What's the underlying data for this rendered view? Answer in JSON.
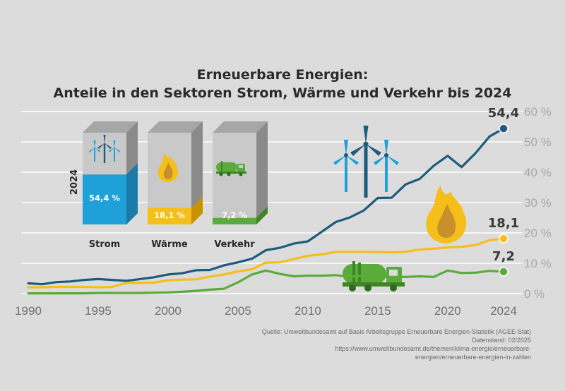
{
  "chart_data": {
    "type": "line",
    "title": [
      "Erneuerbare Energien:",
      "Anteile in den Sektoren Strom, Wärme und Verkehr bis 2024"
    ],
    "xlabel": "",
    "ylabel": "",
    "xlim": [
      1990,
      2024
    ],
    "ylim": [
      0,
      60
    ],
    "x_ticks": [
      "1990",
      "1995",
      "2000",
      "2005",
      "2010",
      "2015",
      "2020",
      "2024"
    ],
    "y_ticks": [
      "0 %",
      "10 %",
      "20 %",
      "30 %",
      "40 %",
      "50 %",
      "60 %"
    ],
    "grid": true,
    "x": [
      1990,
      1991,
      1992,
      1993,
      1994,
      1995,
      1996,
      1997,
      1998,
      1999,
      2000,
      2001,
      2002,
      2003,
      2004,
      2005,
      2006,
      2007,
      2008,
      2009,
      2010,
      2011,
      2012,
      2013,
      2014,
      2015,
      2016,
      2017,
      2018,
      2019,
      2020,
      2021,
      2022,
      2023,
      2024
    ],
    "series": [
      {
        "name": "Strom",
        "color": "#1d5b7e",
        "values": [
          3.4,
          3.1,
          3.8,
          4.0,
          4.5,
          4.8,
          4.5,
          4.2,
          4.8,
          5.4,
          6.3,
          6.7,
          7.7,
          7.8,
          9.3,
          10.3,
          11.5,
          14.3,
          15.1,
          16.5,
          17.2,
          20.4,
          23.6,
          25.1,
          27.4,
          31.5,
          31.6,
          36.0,
          37.8,
          42.1,
          45.4,
          41.7,
          46.3,
          51.8,
          54.4
        ]
      },
      {
        "name": "Wärme",
        "color": "#f6be1a",
        "values": [
          2.1,
          2.1,
          2.2,
          2.2,
          2.2,
          2.1,
          2.2,
          3.5,
          3.5,
          3.6,
          4.4,
          4.6,
          4.7,
          5.6,
          6.3,
          7.3,
          8.0,
          10.2,
          10.3,
          11.4,
          12.5,
          12.9,
          13.8,
          13.8,
          13.8,
          13.7,
          13.6,
          13.8,
          14.5,
          14.8,
          15.2,
          15.4,
          16.0,
          17.6,
          18.1
        ]
      },
      {
        "name": "Verkehr",
        "color": "#5bab3b",
        "values": [
          0.1,
          0.1,
          0.1,
          0.1,
          0.1,
          0.2,
          0.2,
          0.2,
          0.2,
          0.3,
          0.4,
          0.6,
          0.9,
          1.3,
          1.6,
          3.7,
          6.3,
          7.6,
          6.5,
          5.7,
          5.9,
          5.9,
          6.1,
          5.5,
          5.9,
          5.6,
          5.5,
          5.5,
          5.7,
          5.5,
          7.6,
          6.8,
          6.9,
          7.5,
          7.2
        ]
      }
    ],
    "end_labels": [
      "54,4",
      "18,1",
      "7,2"
    ],
    "bars": {
      "year_label": "2024",
      "items": [
        {
          "label": "Strom",
          "value": 54.4,
          "text": "54,4 %",
          "color": "#1fa0d8",
          "side": "#1a7aa8",
          "icon": "wind-turbines-icon"
        },
        {
          "label": "Wärme",
          "value": 18.1,
          "text": "18,1 %",
          "color": "#f6be1a",
          "side": "#c89200",
          "icon": "flame-icon"
        },
        {
          "label": "Verkehr",
          "value": 7.2,
          "text": "7,2 %",
          "color": "#5bab3b",
          "side": "#3f8526",
          "icon": "tanker-truck-icon"
        }
      ]
    },
    "colors": {
      "grid": "#ffffff",
      "bar_front": "#c9c9c9",
      "bar_top": "#a6a6a6",
      "bar_side": "#8a8a8a"
    }
  },
  "source": {
    "line1": "Quelle: Umweltbundesamt auf Basis Arbeitsgruppe Erneuerbare Energien-Statistik (AGEE-Stat)",
    "line2": "Datenstand: 02/2025",
    "line3": "https://www.umweltbundesamt.de/themen/klima-energie/erneuerbare-",
    "line4": "energien/erneuerbare-energien-in-zahlen"
  }
}
